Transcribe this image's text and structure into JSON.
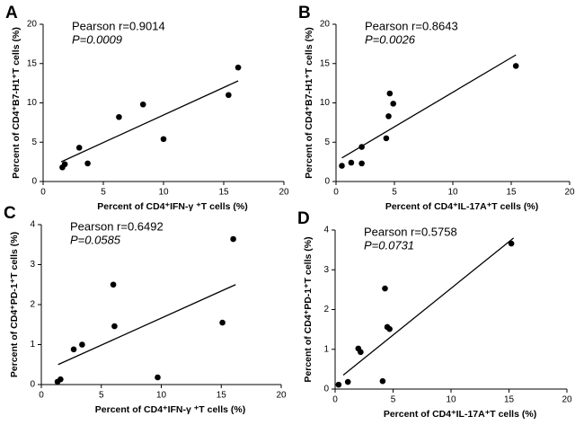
{
  "chart_data": [
    {
      "type": "scatter",
      "panel": "A",
      "x_label": "Percent of CD4⁺IFN-γ ⁺T cells (%)",
      "y_label": "Percent of CD4⁺B7-H1⁺T cells (%)",
      "annotations": [
        "Pearson r=0.9014",
        "P=0.0009"
      ],
      "x": [
        1.6,
        1.8,
        3.0,
        3.7,
        6.3,
        8.3,
        10.0,
        15.4,
        16.2
      ],
      "values": [
        1.8,
        2.2,
        4.3,
        2.3,
        8.2,
        9.8,
        5.4,
        11.0,
        14.5
      ],
      "fit": {
        "x": [
          1.5,
          16.2
        ],
        "y": [
          2.5,
          12.8
        ]
      },
      "color": "#000000",
      "xlim": [
        0,
        20
      ],
      "xticks": [
        0,
        5,
        10,
        15,
        20
      ],
      "ylim": [
        0,
        20
      ],
      "yticks": [
        0,
        5,
        10,
        15,
        20
      ]
    },
    {
      "type": "scatter",
      "panel": "B",
      "x_label": "Percent of CD4⁺IL-17A⁺T cells (%)",
      "y_label": "Percent of CD4⁺B7-H1⁺T cells (%)",
      "annotations": [
        "Pearson r=0.8643",
        "P=0.0026"
      ],
      "x": [
        0.5,
        1.3,
        2.2,
        2.2,
        4.3,
        4.5,
        4.6,
        4.9,
        15.4
      ],
      "values": [
        2.0,
        2.4,
        2.3,
        4.4,
        5.5,
        8.3,
        11.2,
        9.9,
        14.7
      ],
      "fit": {
        "x": [
          0.5,
          15.4
        ],
        "y": [
          3.0,
          16.1
        ]
      },
      "color": "#000000",
      "xlim": [
        0,
        20
      ],
      "xticks": [
        0,
        5,
        10,
        15,
        20
      ],
      "ylim": [
        0,
        20
      ],
      "yticks": [
        0,
        5,
        10,
        15,
        20
      ]
    },
    {
      "type": "scatter",
      "panel": "C",
      "x_label": "Percent of CD4⁺IFN-γ ⁺T cells (%)",
      "y_label": "Percent of CD4⁺PD-1⁺T cells (%)",
      "annotations": [
        "Pearson r=0.6492",
        "P=0.0585"
      ],
      "x": [
        1.35,
        1.6,
        2.7,
        3.4,
        6.0,
        6.1,
        9.7,
        15.1,
        16.0
      ],
      "values": [
        0.07,
        0.13,
        0.88,
        1.0,
        2.5,
        1.46,
        0.18,
        1.55,
        3.64
      ],
      "fit": {
        "x": [
          1.4,
          16.2
        ],
        "y": [
          0.5,
          2.5
        ]
      },
      "color": "#000000",
      "xlim": [
        0,
        20
      ],
      "xticks": [
        0,
        5,
        10,
        15,
        20
      ],
      "ylim": [
        0,
        4
      ],
      "yticks": [
        0,
        1,
        2,
        3,
        4
      ]
    },
    {
      "type": "scatter",
      "panel": "D",
      "x_label": "Percent of CD4⁺IL-17A⁺T cells (%)",
      "y_label": "Percent of CD4⁺PD-1⁺T cells (%)",
      "annotations": [
        "Pearson r=0.5758",
        "P=0.0731"
      ],
      "x": [
        0.3,
        1.1,
        2.0,
        2.2,
        4.1,
        4.3,
        4.5,
        4.7,
        15.2
      ],
      "values": [
        0.11,
        0.18,
        1.02,
        0.93,
        0.2,
        2.53,
        1.56,
        1.51,
        3.66
      ],
      "fit": {
        "x": [
          0.7,
          15.4
        ],
        "y": [
          0.35,
          3.8
        ]
      },
      "color": "#000000",
      "xlim": [
        0,
        20
      ],
      "xticks": [
        0,
        5,
        10,
        15,
        20
      ],
      "ylim": [
        0,
        4
      ],
      "yticks": [
        0,
        1,
        2,
        3,
        4
      ]
    }
  ]
}
